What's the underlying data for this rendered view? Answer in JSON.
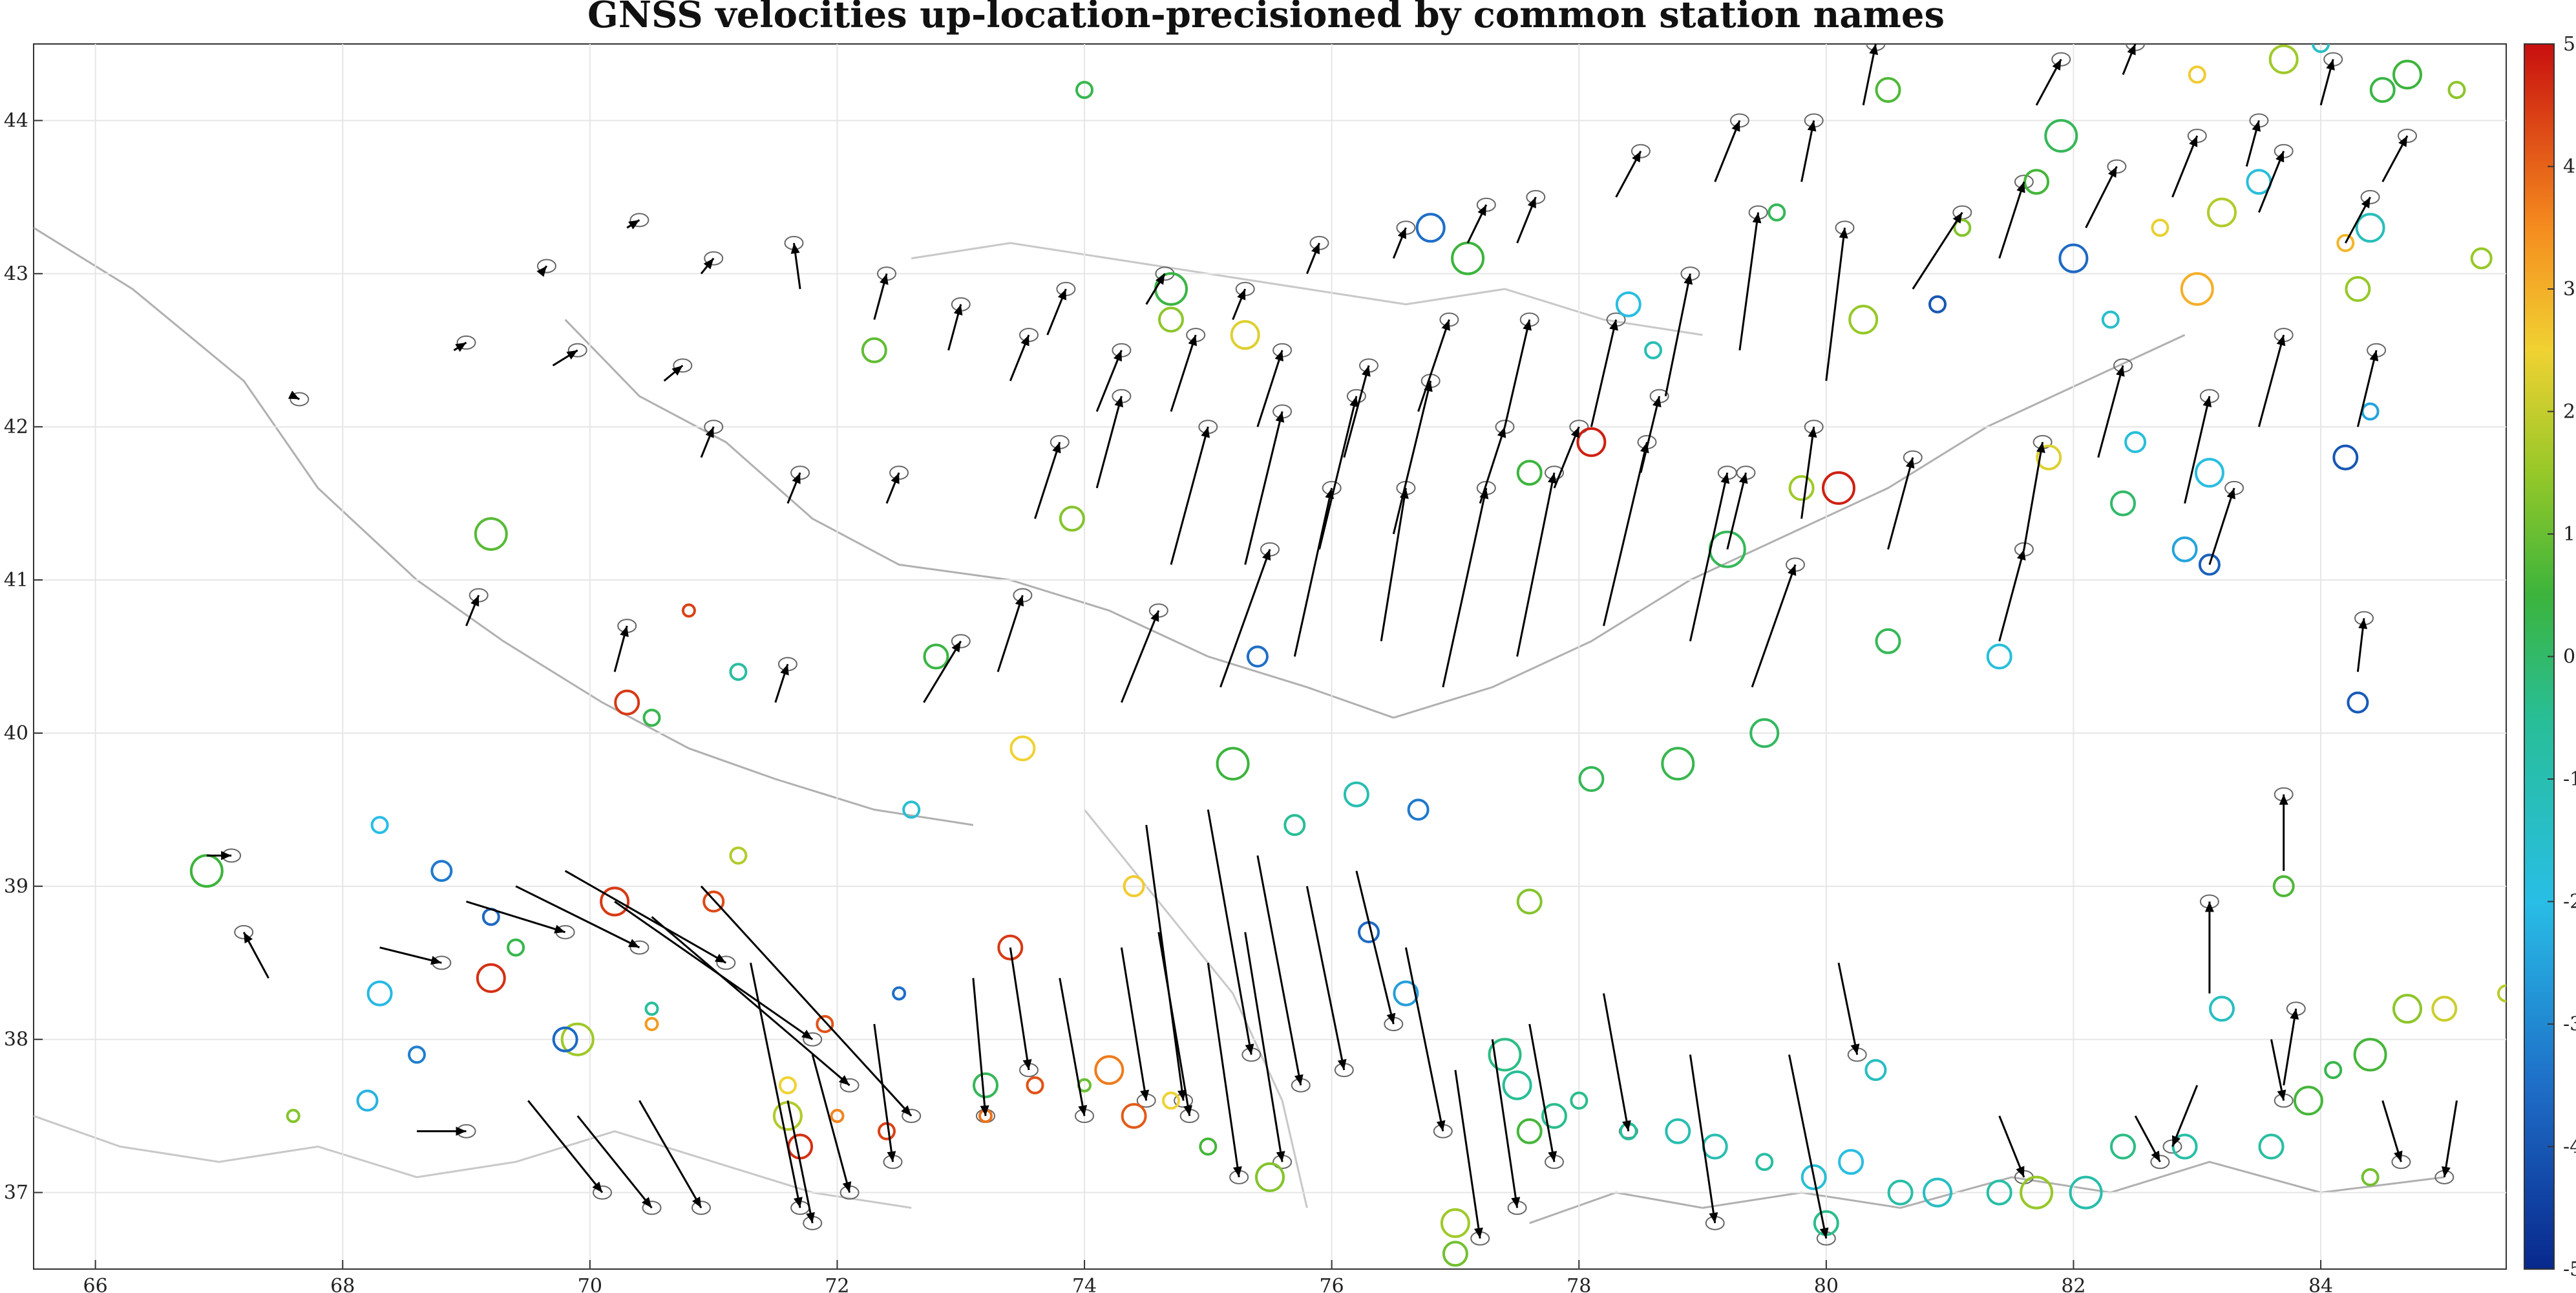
{
  "chart_data": {
    "type": "scatter",
    "title": "GNSS velocities up-location-precisioned by common station names",
    "xlabel": "",
    "ylabel": "",
    "xlim": [
      65.5,
      85.5
    ],
    "ylim": [
      36.5,
      44.5
    ],
    "x_ticks": [
      "66",
      "68",
      "70",
      "72",
      "74",
      "76",
      "78",
      "80",
      "82",
      "84"
    ],
    "y_ticks": [
      "37",
      "38",
      "39",
      "40",
      "41",
      "42",
      "43",
      "44"
    ],
    "colorbar": {
      "range": [
        -5,
        5
      ],
      "ticks": [
        "-5",
        "-4",
        "-3",
        "-2",
        "-1",
        "0",
        "1",
        "2",
        "3",
        "4",
        "5"
      ],
      "colormap": "parula-like (blue to green to yellow to red)"
    },
    "grid": true,
    "arrow_color": "#000000",
    "ellipse_color": "#666666",
    "arrows": [
      [
        66.9,
        39.2,
        0.2,
        0.0
      ],
      [
        67.4,
        38.4,
        -0.2,
        0.3
      ],
      [
        67.6,
        42.2,
        0.05,
        -0.02
      ],
      [
        68.3,
        38.6,
        0.5,
        -0.1
      ],
      [
        68.6,
        37.4,
        0.4,
        0.0
      ],
      [
        69.0,
        38.9,
        0.8,
        -0.2
      ],
      [
        69.4,
        39.0,
        1.0,
        -0.4
      ],
      [
        69.8,
        39.1,
        1.3,
        -0.6
      ],
      [
        70.2,
        38.9,
        1.6,
        -0.9
      ],
      [
        70.5,
        38.8,
        1.6,
        -1.1
      ],
      [
        70.9,
        39.0,
        1.7,
        -1.5
      ],
      [
        71.3,
        38.5,
        0.4,
        -1.6
      ],
      [
        69.5,
        37.6,
        0.6,
        -0.6
      ],
      [
        69.9,
        37.5,
        0.6,
        -0.6
      ],
      [
        70.4,
        37.6,
        0.5,
        -0.7
      ],
      [
        71.6,
        37.6,
        0.2,
        -0.8
      ],
      [
        71.8,
        37.9,
        0.3,
        -0.9
      ],
      [
        72.3,
        38.1,
        0.15,
        -0.9
      ],
      [
        73.1,
        38.4,
        0.1,
        -0.9
      ],
      [
        73.4,
        38.6,
        0.15,
        -0.8
      ],
      [
        73.8,
        38.4,
        0.2,
        -0.9
      ],
      [
        74.3,
        38.6,
        0.2,
        -1.0
      ],
      [
        74.6,
        38.7,
        0.25,
        -1.2
      ],
      [
        75.0,
        38.5,
        0.25,
        -1.4
      ],
      [
        75.3,
        38.7,
        0.3,
        -1.5
      ],
      [
        74.5,
        39.4,
        0.3,
        -1.8
      ],
      [
        75.0,
        39.5,
        0.35,
        -1.6
      ],
      [
        75.4,
        39.2,
        0.35,
        -1.5
      ],
      [
        75.8,
        39.0,
        0.3,
        -1.2
      ],
      [
        76.2,
        39.1,
        0.3,
        -1.0
      ],
      [
        76.6,
        38.6,
        0.3,
        -1.2
      ],
      [
        77.0,
        37.8,
        0.2,
        -1.1
      ],
      [
        77.3,
        38.0,
        0.2,
        -1.1
      ],
      [
        77.6,
        38.1,
        0.2,
        -0.9
      ],
      [
        78.2,
        38.3,
        0.2,
        -0.9
      ],
      [
        78.9,
        37.9,
        0.2,
        -1.1
      ],
      [
        79.7,
        37.9,
        0.3,
        -1.2
      ],
      [
        80.1,
        38.5,
        0.15,
        -0.6
      ],
      [
        81.4,
        37.5,
        0.2,
        -0.4
      ],
      [
        82.5,
        37.5,
        0.2,
        -0.3
      ],
      [
        83.0,
        37.7,
        -0.2,
        -0.4
      ],
      [
        83.6,
        38.0,
        0.1,
        -0.4
      ],
      [
        84.5,
        37.6,
        0.15,
        -0.4
      ],
      [
        85.1,
        37.6,
        -0.1,
        -0.5
      ],
      [
        72.7,
        40.2,
        0.3,
        0.4
      ],
      [
        73.3,
        40.4,
        0.2,
        0.5
      ],
      [
        74.3,
        40.2,
        0.3,
        0.6
      ],
      [
        75.1,
        40.3,
        0.4,
        0.9
      ],
      [
        75.7,
        40.5,
        0.3,
        1.1
      ],
      [
        76.4,
        40.6,
        0.2,
        1.0
      ],
      [
        76.9,
        40.3,
        0.35,
        1.3
      ],
      [
        77.5,
        40.5,
        0.3,
        1.2
      ],
      [
        78.2,
        40.7,
        0.35,
        1.2
      ],
      [
        78.9,
        40.6,
        0.3,
        1.1
      ],
      [
        79.4,
        40.3,
        0.35,
        0.8
      ],
      [
        77.2,
        41.5,
        0.2,
        0.5
      ],
      [
        77.8,
        41.6,
        0.2,
        0.4
      ],
      [
        78.5,
        41.7,
        0.15,
        0.5
      ],
      [
        79.2,
        41.2,
        0.15,
        0.5
      ],
      [
        79.8,
        41.4,
        0.1,
        0.6
      ],
      [
        80.5,
        41.2,
        0.2,
        0.6
      ],
      [
        81.6,
        41.2,
        0.15,
        0.7
      ],
      [
        82.2,
        41.8,
        0.2,
        0.6
      ],
      [
        82.9,
        41.5,
        0.2,
        0.7
      ],
      [
        83.5,
        42.0,
        0.2,
        0.6
      ],
      [
        84.3,
        42.0,
        0.15,
        0.5
      ],
      [
        81.4,
        40.6,
        0.2,
        0.6
      ],
      [
        83.1,
        41.1,
        0.2,
        0.5
      ],
      [
        84.3,
        40.4,
        0.05,
        0.35
      ],
      [
        83.7,
        39.1,
        0.0,
        0.5
      ],
      [
        83.1,
        38.3,
        0.0,
        0.6
      ],
      [
        83.7,
        37.7,
        0.1,
        0.5
      ],
      [
        80.7,
        42.9,
        0.4,
        0.5
      ],
      [
        81.4,
        43.1,
        0.2,
        0.5
      ],
      [
        82.1,
        43.3,
        0.25,
        0.4
      ],
      [
        82.8,
        43.5,
        0.2,
        0.4
      ],
      [
        83.5,
        43.4,
        0.2,
        0.4
      ],
      [
        84.5,
        43.6,
        0.2,
        0.3
      ],
      [
        81.7,
        44.1,
        0.2,
        0.3
      ],
      [
        82.4,
        44.3,
        0.1,
        0.2
      ],
      [
        83.4,
        43.7,
        0.1,
        0.3
      ],
      [
        84.2,
        43.2,
        0.2,
        0.3
      ],
      [
        84.0,
        44.1,
        0.1,
        0.3
      ],
      [
        80.3,
        44.1,
        0.1,
        0.4
      ],
      [
        79.8,
        43.6,
        0.1,
        0.4
      ],
      [
        79.1,
        43.6,
        0.2,
        0.4
      ],
      [
        78.3,
        43.5,
        0.2,
        0.3
      ],
      [
        77.5,
        43.2,
        0.15,
        0.3
      ],
      [
        77.1,
        43.2,
        0.15,
        0.25
      ],
      [
        76.5,
        43.1,
        0.1,
        0.2
      ],
      [
        75.8,
        43.0,
        0.1,
        0.2
      ],
      [
        75.2,
        42.7,
        0.1,
        0.2
      ],
      [
        74.5,
        42.8,
        0.15,
        0.2
      ],
      [
        73.7,
        42.6,
        0.15,
        0.3
      ],
      [
        72.9,
        42.5,
        0.1,
        0.3
      ],
      [
        72.3,
        42.7,
        0.1,
        0.3
      ],
      [
        71.7,
        42.9,
        -0.05,
        0.3
      ],
      [
        73.4,
        42.3,
        0.15,
        0.3
      ],
      [
        74.1,
        42.1,
        0.2,
        0.4
      ],
      [
        74.7,
        42.1,
        0.2,
        0.5
      ],
      [
        75.4,
        42.0,
        0.2,
        0.5
      ],
      [
        76.1,
        41.8,
        0.2,
        0.6
      ],
      [
        76.7,
        42.1,
        0.25,
        0.6
      ],
      [
        77.4,
        42.0,
        0.2,
        0.7
      ],
      [
        78.1,
        42.0,
        0.2,
        0.7
      ],
      [
        78.7,
        42.2,
        0.2,
        0.8
      ],
      [
        79.3,
        42.5,
        0.15,
        0.9
      ],
      [
        80.0,
        42.3,
        0.15,
        1.0
      ],
      [
        73.6,
        41.4,
        0.2,
        0.5
      ],
      [
        74.1,
        41.6,
        0.2,
        0.6
      ],
      [
        74.7,
        41.1,
        0.3,
        0.9
      ],
      [
        75.3,
        41.1,
        0.3,
        1.0
      ],
      [
        75.9,
        41.2,
        0.3,
        1.0
      ],
      [
        76.5,
        41.3,
        0.3,
        1.0
      ],
      [
        70.6,
        42.3,
        0.15,
        0.1
      ],
      [
        69.7,
        42.4,
        0.2,
        0.1
      ],
      [
        68.9,
        42.5,
        0.1,
        0.05
      ],
      [
        70.3,
        43.3,
        0.1,
        0.05
      ],
      [
        70.9,
        43.0,
        0.1,
        0.1
      ],
      [
        69.6,
        43.0,
        0.05,
        0.05
      ],
      [
        70.9,
        41.8,
        0.1,
        0.2
      ],
      [
        71.6,
        41.5,
        0.1,
        0.2
      ],
      [
        72.4,
        41.5,
        0.1,
        0.2
      ],
      [
        71.5,
        40.2,
        0.1,
        0.25
      ],
      [
        70.2,
        40.4,
        0.1,
        0.3
      ],
      [
        69.0,
        40.7,
        0.1,
        0.2
      ]
    ],
    "circles": [
      [
        66.9,
        39.1,
        0.5,
        0.4
      ],
      [
        68.3,
        39.4,
        -2.0,
        0.2
      ],
      [
        68.3,
        38.3,
        -2.1,
        0.3
      ],
      [
        68.2,
        37.6,
        -2.2,
        0.25
      ],
      [
        68.6,
        37.9,
        -3.2,
        0.2
      ],
      [
        68.8,
        39.1,
        -3.3,
        0.25
      ],
      [
        69.2,
        38.4,
        4.6,
        0.35
      ],
      [
        69.2,
        38.8,
        -3.6,
        0.2
      ],
      [
        69.4,
        38.6,
        0.3,
        0.2
      ],
      [
        69.9,
        38.0,
        1.6,
        0.4
      ],
      [
        69.8,
        38.0,
        -3.6,
        0.3
      ],
      [
        70.2,
        38.9,
        4.5,
        0.35
      ],
      [
        70.3,
        40.2,
        4.5,
        0.3
      ],
      [
        70.5,
        40.1,
        0.3,
        0.2
      ],
      [
        70.5,
        38.1,
        3.3,
        0.15
      ],
      [
        71.0,
        38.9,
        4.3,
        0.25
      ],
      [
        71.2,
        39.2,
        1.8,
        0.2
      ],
      [
        71.6,
        37.5,
        1.8,
        0.35
      ],
      [
        71.7,
        37.3,
        4.6,
        0.3
      ],
      [
        71.6,
        37.7,
        2.5,
        0.2
      ],
      [
        71.9,
        38.1,
        4.2,
        0.2
      ],
      [
        72.4,
        37.4,
        4.4,
        0.2
      ],
      [
        72.5,
        38.3,
        -3.5,
        0.15
      ],
      [
        73.2,
        37.7,
        0.2,
        0.3
      ],
      [
        73.4,
        38.6,
        4.5,
        0.3
      ],
      [
        73.6,
        37.7,
        4.2,
        0.2
      ],
      [
        74.0,
        37.7,
        1.0,
        0.15
      ],
      [
        74.2,
        37.8,
        3.7,
        0.35
      ],
      [
        74.4,
        37.5,
        4.1,
        0.3
      ],
      [
        74.4,
        39.0,
        2.6,
        0.25
      ],
      [
        73.5,
        39.9,
        2.5,
        0.3
      ],
      [
        72.6,
        39.5,
        -1.6,
        0.2
      ],
      [
        72.3,
        42.5,
        0.9,
        0.3
      ],
      [
        73.9,
        41.4,
        1.3,
        0.3
      ],
      [
        72.8,
        40.5,
        0.4,
        0.3
      ],
      [
        71.2,
        40.4,
        -0.7,
        0.2
      ],
      [
        69.2,
        41.3,
        0.8,
        0.4
      ],
      [
        74.0,
        44.2,
        0.3,
        0.2
      ],
      [
        74.7,
        42.9,
        0.4,
        0.4
      ],
      [
        74.7,
        42.7,
        1.4,
        0.3
      ],
      [
        75.3,
        42.6,
        2.3,
        0.35
      ],
      [
        75.2,
        39.8,
        0.5,
        0.4
      ],
      [
        75.4,
        40.5,
        -3.5,
        0.25
      ],
      [
        75.7,
        39.4,
        -0.5,
        0.25
      ],
      [
        76.2,
        39.6,
        -1.0,
        0.3
      ],
      [
        76.3,
        38.7,
        -3.6,
        0.25
      ],
      [
        76.6,
        38.3,
        -2.6,
        0.3
      ],
      [
        76.7,
        39.5,
        -3.3,
        0.25
      ],
      [
        77.0,
        36.8,
        1.6,
        0.35
      ],
      [
        77.6,
        38.9,
        1.3,
        0.3
      ],
      [
        77.4,
        37.9,
        -0.3,
        0.4
      ],
      [
        77.5,
        37.7,
        -0.5,
        0.35
      ],
      [
        77.6,
        37.4,
        0.6,
        0.3
      ],
      [
        77.8,
        37.5,
        -0.4,
        0.3
      ],
      [
        78.1,
        39.7,
        0.2,
        0.3
      ],
      [
        78.6,
        42.5,
        -1.1,
        0.2
      ],
      [
        78.4,
        42.8,
        -1.9,
        0.3
      ],
      [
        78.1,
        41.9,
        4.8,
        0.35
      ],
      [
        77.6,
        41.7,
        0.5,
        0.3
      ],
      [
        77.1,
        43.1,
        0.5,
        0.4
      ],
      [
        76.8,
        43.3,
        -3.5,
        0.35
      ],
      [
        78.8,
        39.8,
        0.3,
        0.4
      ],
      [
        79.5,
        40.0,
        0.1,
        0.35
      ],
      [
        79.2,
        41.2,
        0.2,
        0.45
      ],
      [
        79.6,
        43.4,
        0.2,
        0.2
      ],
      [
        80.3,
        42.7,
        1.5,
        0.35
      ],
      [
        80.1,
        41.6,
        4.8,
        0.4
      ],
      [
        79.8,
        41.6,
        1.6,
        0.3
      ],
      [
        80.5,
        40.6,
        0.2,
        0.3
      ],
      [
        80.4,
        37.8,
        -1.3,
        0.25
      ],
      [
        80.5,
        44.2,
        0.7,
        0.3
      ],
      [
        80.9,
        42.8,
        -4.0,
        0.2
      ],
      [
        81.4,
        40.5,
        -1.8,
        0.3
      ],
      [
        81.1,
        43.3,
        1.3,
        0.2
      ],
      [
        81.9,
        43.9,
        0.2,
        0.4
      ],
      [
        81.7,
        43.6,
        0.6,
        0.3
      ],
      [
        82.0,
        43.1,
        -3.6,
        0.35
      ],
      [
        82.3,
        42.7,
        -1.5,
        0.2
      ],
      [
        81.8,
        41.8,
        2.3,
        0.3
      ],
      [
        82.4,
        41.5,
        0.0,
        0.3
      ],
      [
        82.5,
        41.9,
        -1.8,
        0.25
      ],
      [
        82.7,
        43.3,
        2.4,
        0.2
      ],
      [
        82.9,
        41.2,
        -2.5,
        0.3
      ],
      [
        83.1,
        41.1,
        -3.8,
        0.25
      ],
      [
        83.1,
        41.7,
        -1.9,
        0.35
      ],
      [
        83.2,
        43.4,
        1.8,
        0.35
      ],
      [
        83.5,
        43.6,
        -1.8,
        0.3
      ],
      [
        83.0,
        42.9,
        3.0,
        0.4
      ],
      [
        83.0,
        44.3,
        2.6,
        0.2
      ],
      [
        83.7,
        44.4,
        1.6,
        0.35
      ],
      [
        84.0,
        44.5,
        -1.4,
        0.2
      ],
      [
        84.2,
        41.8,
        -4.0,
        0.3
      ],
      [
        84.3,
        42.9,
        1.5,
        0.3
      ],
      [
        84.2,
        43.2,
        2.9,
        0.2
      ],
      [
        84.5,
        44.2,
        0.4,
        0.3
      ],
      [
        84.7,
        44.3,
        0.5,
        0.35
      ],
      [
        85.1,
        44.2,
        1.4,
        0.2
      ],
      [
        84.4,
        43.3,
        -1.2,
        0.35
      ],
      [
        84.4,
        42.1,
        -2.5,
        0.2
      ],
      [
        85.3,
        43.1,
        1.5,
        0.25
      ],
      [
        83.7,
        39.0,
        0.7,
        0.25
      ],
      [
        83.6,
        37.3,
        -0.7,
        0.3
      ],
      [
        83.9,
        37.6,
        0.6,
        0.35
      ],
      [
        84.4,
        37.1,
        1.1,
        0.2
      ],
      [
        84.3,
        40.2,
        -3.9,
        0.25
      ],
      [
        83.2,
        38.2,
        -1.3,
        0.3
      ],
      [
        82.9,
        37.3,
        -0.8,
        0.3
      ],
      [
        82.4,
        37.3,
        -0.3,
        0.3
      ],
      [
        81.7,
        37.0,
        1.5,
        0.4
      ],
      [
        81.4,
        37.0,
        -0.8,
        0.3
      ],
      [
        82.1,
        37.0,
        -0.9,
        0.4
      ],
      [
        80.9,
        37.0,
        -1.3,
        0.35
      ],
      [
        80.6,
        37.0,
        -0.8,
        0.3
      ],
      [
        80.2,
        37.2,
        -1.9,
        0.3
      ],
      [
        79.9,
        37.1,
        -1.7,
        0.3
      ],
      [
        79.5,
        37.2,
        -0.7,
        0.2
      ],
      [
        79.1,
        37.3,
        -1.0,
        0.3
      ],
      [
        78.8,
        37.4,
        -1.0,
        0.3
      ],
      [
        78.4,
        37.4,
        -0.6,
        0.2
      ],
      [
        78.0,
        37.6,
        -0.4,
        0.2
      ],
      [
        80.0,
        36.8,
        -0.4,
        0.3
      ],
      [
        77.0,
        36.6,
        1.1,
        0.3
      ],
      [
        84.7,
        38.2,
        1.4,
        0.35
      ],
      [
        85.0,
        38.2,
        2.1,
        0.3
      ],
      [
        84.4,
        37.9,
        0.6,
        0.4
      ],
      [
        84.1,
        37.8,
        0.3,
        0.2
      ],
      [
        85.5,
        38.3,
        1.9,
        0.2
      ],
      [
        75.0,
        37.3,
        0.6,
        0.2
      ],
      [
        75.5,
        37.1,
        1.3,
        0.35
      ],
      [
        74.7,
        37.6,
        2.5,
        0.2
      ],
      [
        73.2,
        37.5,
        3.8,
        0.15
      ],
      [
        72.0,
        37.5,
        3.6,
        0.15
      ],
      [
        67.6,
        37.5,
        1.3,
        0.15
      ],
      [
        70.5,
        38.2,
        -0.6,
        0.15
      ],
      [
        70.8,
        40.8,
        4.4,
        0.15
      ]
    ]
  }
}
